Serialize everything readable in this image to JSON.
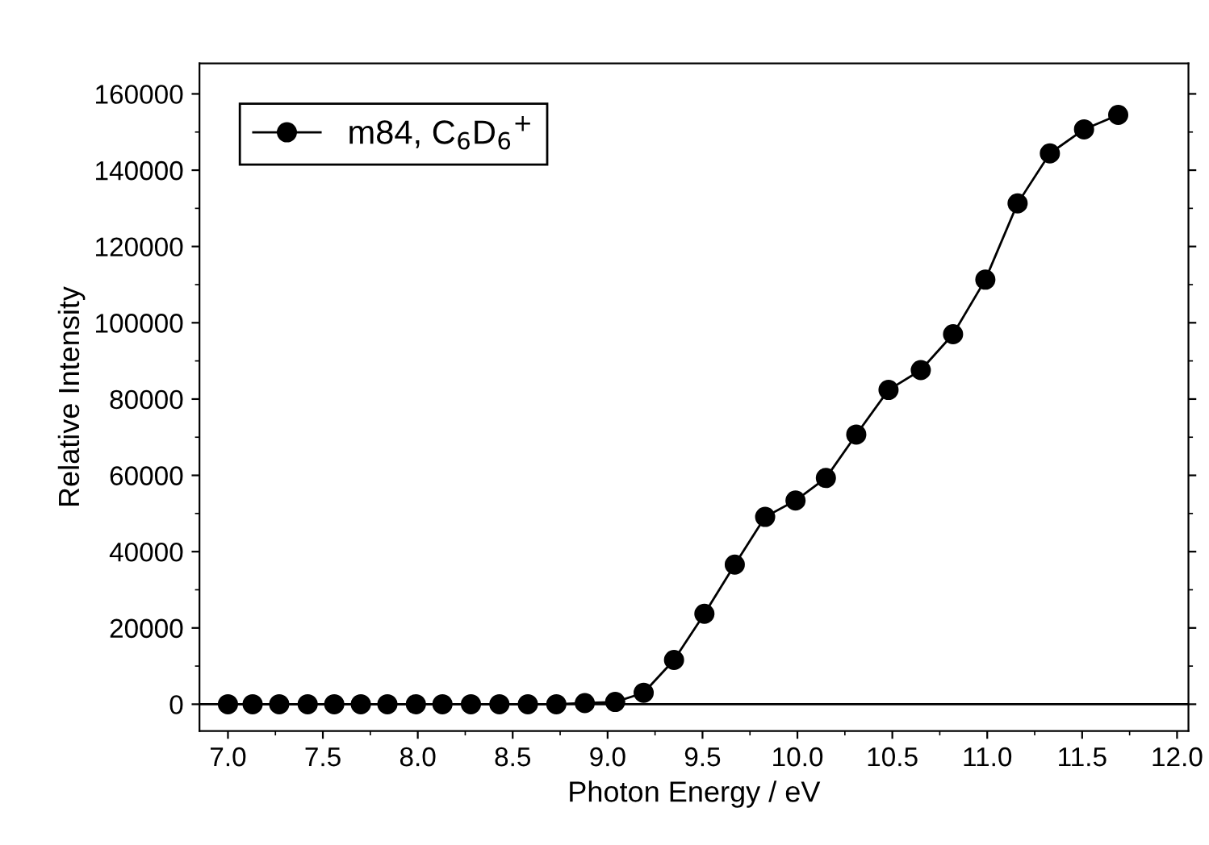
{
  "chart_data": {
    "type": "line",
    "xlabel": "Photon Energy / eV",
    "ylabel": "Relative Intensity",
    "x": [
      7.0,
      7.13,
      7.27,
      7.42,
      7.56,
      7.7,
      7.84,
      7.99,
      8.13,
      8.28,
      8.43,
      8.58,
      8.73,
      8.88,
      9.04,
      9.19,
      9.35,
      9.51,
      9.67,
      9.83,
      9.99,
      10.15,
      10.31,
      10.48,
      10.65,
      10.82,
      10.99,
      11.16,
      11.33,
      11.51,
      11.69
    ],
    "series": [
      {
        "name": "m84, C$_{6}$D$_{6}$$^{+}$",
        "color": "#000000",
        "values": [
          0,
          0,
          0,
          0,
          0,
          0,
          0,
          0,
          0,
          0,
          0,
          0,
          0,
          300,
          600,
          3000,
          11600,
          23700,
          36600,
          49100,
          53400,
          59300,
          70700,
          82400,
          87600,
          97000,
          111300,
          131300,
          144400,
          150700,
          154500
        ]
      }
    ],
    "xlim": [
      6.85,
      12.06
    ],
    "ylim": [
      -7000,
      168000
    ],
    "xticks": [
      {
        "value": 7,
        "label": "7.0"
      },
      {
        "value": 7.5,
        "label": "7.5"
      },
      {
        "value": 8,
        "label": "8.0"
      },
      {
        "value": 8.5,
        "label": "8.5"
      },
      {
        "value": 9,
        "label": "9.0"
      },
      {
        "value": 9.5,
        "label": "9.5"
      },
      {
        "value": 10,
        "label": "10.0"
      },
      {
        "value": 10.5,
        "label": "10.5"
      },
      {
        "value": 11,
        "label": "11.0"
      },
      {
        "value": 11.5,
        "label": "11.5"
      },
      {
        "value": 12,
        "label": "12.0"
      }
    ],
    "yticks": [
      0,
      20000,
      40000,
      60000,
      80000,
      100000,
      120000,
      140000,
      160000
    ],
    "ref_lines": [
      {
        "axis": "y",
        "value": 0,
        "color": "#000000"
      }
    ],
    "marker": "circle",
    "line_style": "solid",
    "legend": "top left",
    "grid": false
  }
}
